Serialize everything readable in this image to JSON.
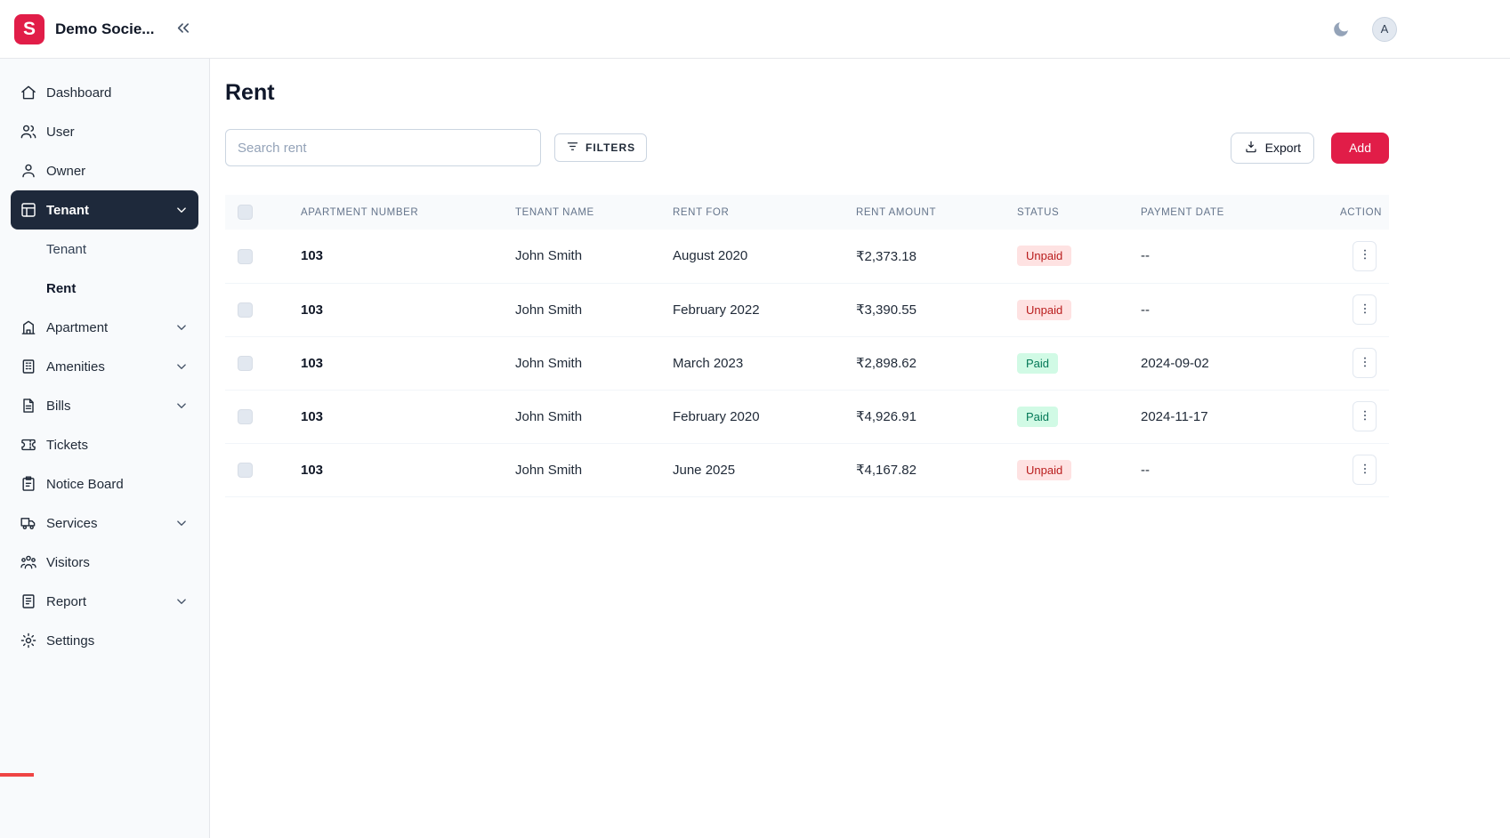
{
  "header": {
    "logo_letter": "S",
    "app_title": "Demo Socie...",
    "avatar_letter": "A"
  },
  "sidebar": {
    "items": [
      {
        "label": "Dashboard",
        "icon": "home-icon",
        "expandable": false
      },
      {
        "label": "User",
        "icon": "users-icon",
        "expandable": false
      },
      {
        "label": "Owner",
        "icon": "user-icon",
        "expandable": false
      },
      {
        "label": "Tenant",
        "icon": "tenant-icon",
        "expandable": true,
        "active": true,
        "children": [
          {
            "label": "Tenant",
            "active": false
          },
          {
            "label": "Rent",
            "active": true
          }
        ]
      },
      {
        "label": "Apartment",
        "icon": "apartment-icon",
        "expandable": true
      },
      {
        "label": "Amenities",
        "icon": "amenities-icon",
        "expandable": true
      },
      {
        "label": "Bills",
        "icon": "bills-icon",
        "expandable": true
      },
      {
        "label": "Tickets",
        "icon": "tickets-icon",
        "expandable": false
      },
      {
        "label": "Notice Board",
        "icon": "notice-board-icon",
        "expandable": false
      },
      {
        "label": "Services",
        "icon": "services-icon",
        "expandable": true
      },
      {
        "label": "Visitors",
        "icon": "visitors-icon",
        "expandable": false
      },
      {
        "label": "Report",
        "icon": "report-icon",
        "expandable": true
      },
      {
        "label": "Settings",
        "icon": "settings-icon",
        "expandable": false
      }
    ]
  },
  "main": {
    "page_title": "Rent",
    "search_placeholder": "Search rent",
    "filters_label": "FILTERS",
    "export_label": "Export",
    "add_label": "Add"
  },
  "table": {
    "columns": [
      "APARTMENT NUMBER",
      "TENANT NAME",
      "RENT FOR",
      "RENT AMOUNT",
      "STATUS",
      "PAYMENT DATE",
      "ACTION"
    ],
    "rows": [
      {
        "apartment_number": "103",
        "tenant_name": "John Smith",
        "rent_for": "August 2020",
        "rent_amount": "₹2,373.18",
        "status": "Unpaid",
        "payment_date": "--"
      },
      {
        "apartment_number": "103",
        "tenant_name": "John Smith",
        "rent_for": "February 2022",
        "rent_amount": "₹3,390.55",
        "status": "Unpaid",
        "payment_date": "--"
      },
      {
        "apartment_number": "103",
        "tenant_name": "John Smith",
        "rent_for": "March 2023",
        "rent_amount": "₹2,898.62",
        "status": "Paid",
        "payment_date": "2024-09-02"
      },
      {
        "apartment_number": "103",
        "tenant_name": "John Smith",
        "rent_for": "February 2020",
        "rent_amount": "₹4,926.91",
        "status": "Paid",
        "payment_date": "2024-11-17"
      },
      {
        "apartment_number": "103",
        "tenant_name": "John Smith",
        "rent_for": "June 2025",
        "rent_amount": "₹4,167.82",
        "status": "Unpaid",
        "payment_date": "--"
      }
    ]
  },
  "colors": {
    "accent": "#e11d48",
    "sidebar_active_bg": "#1e293b",
    "unpaid_bg": "#fee2e2",
    "unpaid_text": "#b91c1c",
    "paid_bg": "#d1fae5",
    "paid_text": "#047857"
  }
}
